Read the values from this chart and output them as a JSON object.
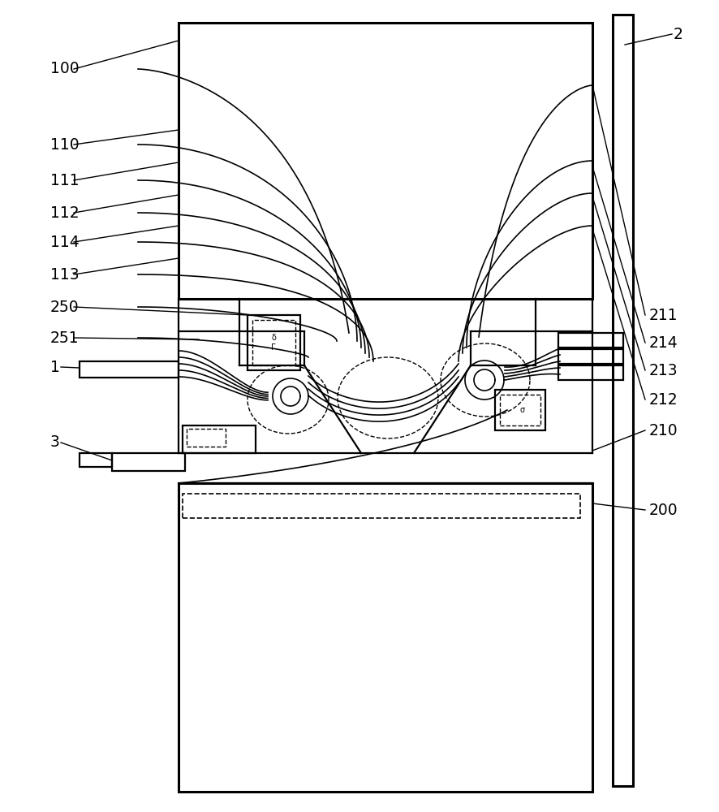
{
  "background_color": "#ffffff",
  "line_color": "#000000",
  "fig_width": 8.86,
  "fig_height": 10.0,
  "labels_left": [
    [
      "100",
      62,
      85
    ],
    [
      "110",
      62,
      178
    ],
    [
      "111",
      62,
      222
    ],
    [
      "112",
      62,
      262
    ],
    [
      "114",
      62,
      298
    ],
    [
      "113",
      62,
      338
    ],
    [
      "250",
      62,
      378
    ],
    [
      "251",
      62,
      416
    ],
    [
      "1",
      62,
      452
    ],
    [
      "3",
      62,
      545
    ]
  ],
  "labels_right": [
    [
      "211",
      800,
      388
    ],
    [
      "214",
      800,
      422
    ],
    [
      "213",
      800,
      456
    ],
    [
      "212",
      800,
      492
    ],
    [
      "210",
      800,
      530
    ],
    [
      "200",
      800,
      628
    ]
  ],
  "label2": [
    830,
    42
  ]
}
